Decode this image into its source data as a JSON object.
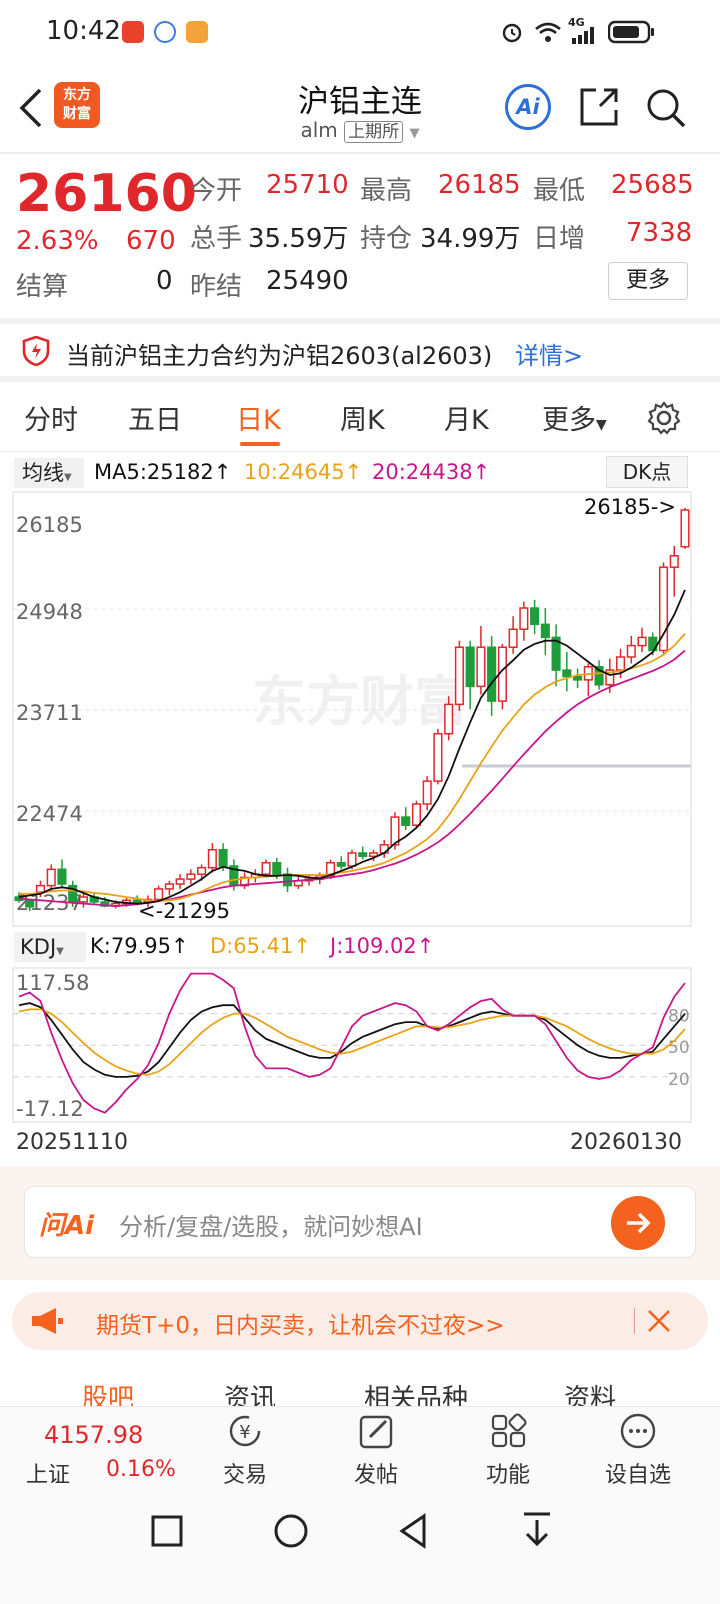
{
  "status": {
    "time": "10:42",
    "network": "4G"
  },
  "header": {
    "logo_line1": "东方",
    "logo_line2": "财富",
    "title": "沪铝主连",
    "code": "alm",
    "exchange": "上期所",
    "ai_label": "Ai"
  },
  "quote": {
    "price": "26160",
    "change_pct": "2.63%",
    "change": "670",
    "settle_label": "结算",
    "settle": "0",
    "open_label": "今开",
    "open": "25710",
    "high_label": "最高",
    "high": "26185",
    "low_label": "最低",
    "low": "25685",
    "volume_label": "总手",
    "volume": "35.59万",
    "oi_label": "持仓",
    "oi": "34.99万",
    "daily_inc_label": "日增",
    "daily_inc": "7338",
    "prev_settle_label": "昨结",
    "prev_settle": "25490",
    "more_button": "更多"
  },
  "notice": {
    "text": "当前沪铝主力合约为沪铝2603(al2603)",
    "link": "详情>"
  },
  "tabs": [
    "分时",
    "五日",
    "日K",
    "周K",
    "月K",
    "更多"
  ],
  "active_tab": "日K",
  "ma_bar": {
    "selector": "均线",
    "ma5": "MA5:25182↑",
    "ma10": "10:24645↑",
    "ma20": "20:24438↑",
    "dk_button": "DK点"
  },
  "kdj_bar": {
    "selector": "KDJ",
    "k": "K:79.95↑",
    "d": "D:65.41↑",
    "j": "J:109.02↑"
  },
  "colors": {
    "up": "#e0282c",
    "down": "#1f9d3a",
    "ma5": "#111111",
    "ma10": "#e8a317",
    "ma20": "#c8168c",
    "accent": "#f5621f",
    "link": "#2f6fd8"
  },
  "chart_data": [
    {
      "type": "candlestick",
      "y_ticks": [
        "26185",
        "24948",
        "23711",
        "22474",
        "21237"
      ],
      "ylim": [
        21237,
        26185
      ],
      "max_annotation": "26185->",
      "min_annotation": "<-21295",
      "watermark": "东方财富",
      "start_date": "20251110",
      "end_date": "20260130",
      "candles": [
        [
          21420,
          21480,
          21350,
          21380
        ],
        [
          21380,
          21400,
          21250,
          21300
        ],
        [
          21480,
          21620,
          21420,
          21560
        ],
        [
          21560,
          21820,
          21500,
          21760
        ],
        [
          21760,
          21880,
          21540,
          21580
        ],
        [
          21560,
          21620,
          21300,
          21360
        ],
        [
          21360,
          21460,
          21290,
          21420
        ],
        [
          21420,
          21480,
          21330,
          21360
        ],
        [
          21360,
          21420,
          21295,
          21310
        ],
        [
          21310,
          21380,
          21280,
          21340
        ],
        [
          21340,
          21420,
          21300,
          21380
        ],
        [
          21380,
          21440,
          21320,
          21360
        ],
        [
          21360,
          21440,
          21300,
          21390
        ],
        [
          21390,
          21560,
          21360,
          21520
        ],
        [
          21520,
          21620,
          21440,
          21580
        ],
        [
          21580,
          21700,
          21520,
          21640
        ],
        [
          21640,
          21760,
          21580,
          21700
        ],
        [
          21700,
          21820,
          21620,
          21780
        ],
        [
          21780,
          22080,
          21720,
          22000
        ],
        [
          22000,
          22080,
          21740,
          21800
        ],
        [
          21800,
          21880,
          21500,
          21560
        ],
        [
          21560,
          21720,
          21520,
          21660
        ],
        [
          21660,
          21760,
          21600,
          21700
        ],
        [
          21700,
          21880,
          21660,
          21840
        ],
        [
          21840,
          21900,
          21640,
          21700
        ],
        [
          21700,
          21780,
          21480,
          21560
        ],
        [
          21560,
          21700,
          21520,
          21620
        ],
        [
          21620,
          21700,
          21560,
          21640
        ],
        [
          21640,
          21720,
          21580,
          21680
        ],
        [
          21680,
          21880,
          21640,
          21840
        ],
        [
          21840,
          21920,
          21760,
          21800
        ],
        [
          21800,
          22000,
          21760,
          21960
        ],
        [
          21960,
          22040,
          21880,
          21920
        ],
        [
          21920,
          22000,
          21860,
          21960
        ],
        [
          21960,
          22120,
          21900,
          22060
        ],
        [
          22060,
          22460,
          22000,
          22400
        ],
        [
          22400,
          22520,
          22240,
          22300
        ],
        [
          22300,
          22600,
          22260,
          22560
        ],
        [
          22560,
          22900,
          22480,
          22840
        ],
        [
          22840,
          23480,
          22800,
          23420
        ],
        [
          23420,
          23880,
          23340,
          23780
        ],
        [
          23780,
          24560,
          23700,
          24480
        ],
        [
          24480,
          24560,
          23720,
          24000
        ],
        [
          24000,
          24740,
          23900,
          24480
        ],
        [
          24480,
          24620,
          23640,
          23820
        ],
        [
          23820,
          24520,
          23720,
          24480
        ],
        [
          24480,
          24860,
          24400,
          24700
        ],
        [
          24700,
          25040,
          24560,
          24960
        ],
        [
          24960,
          25060,
          24640,
          24760
        ],
        [
          24760,
          24960,
          24380,
          24600
        ],
        [
          24600,
          24760,
          24000,
          24200
        ],
        [
          24200,
          24420,
          23940,
          24120
        ],
        [
          24120,
          24220,
          23980,
          24080
        ],
        [
          24080,
          24280,
          23880,
          24240
        ],
        [
          24240,
          24320,
          23960,
          24020
        ],
        [
          24020,
          24340,
          23920,
          24200
        ],
        [
          24200,
          24460,
          24100,
          24360
        ],
        [
          24360,
          24620,
          24280,
          24500
        ],
        [
          24500,
          24720,
          24420,
          24600
        ],
        [
          24600,
          24660,
          24380,
          24440
        ],
        [
          24440,
          25520,
          24400,
          25460
        ],
        [
          25460,
          25720,
          25100,
          25600
        ],
        [
          25710,
          26185,
          25685,
          26160
        ]
      ],
      "ma5": [
        21420,
        21440,
        21460,
        21520,
        21540,
        21520,
        21470,
        21420,
        21390,
        21360,
        21350,
        21340,
        21350,
        21370,
        21420,
        21480,
        21560,
        21640,
        21740,
        21790,
        21760,
        21740,
        21700,
        21680,
        21680,
        21690,
        21680,
        21660,
        21650,
        21690,
        21740,
        21790,
        21850,
        21900,
        21960,
        22080,
        22160,
        22270,
        22420,
        22620,
        22900,
        23240,
        23560,
        23860,
        24040,
        24200,
        24320,
        24450,
        24520,
        24560,
        24560,
        24500,
        24400,
        24300,
        24200,
        24140,
        24160,
        24230,
        24320,
        24420,
        24640,
        24880,
        25182
      ],
      "ma10": [
        21460,
        21460,
        21470,
        21490,
        21500,
        21500,
        21490,
        21470,
        21460,
        21440,
        21420,
        21400,
        21380,
        21370,
        21380,
        21400,
        21440,
        21490,
        21550,
        21600,
        21630,
        21650,
        21660,
        21670,
        21680,
        21690,
        21690,
        21690,
        21690,
        21700,
        21720,
        21740,
        21770,
        21800,
        21840,
        21900,
        21960,
        22040,
        22130,
        22250,
        22420,
        22620,
        22840,
        23060,
        23260,
        23460,
        23620,
        23780,
        23900,
        23990,
        24060,
        24100,
        24140,
        24150,
        24160,
        24170,
        24190,
        24220,
        24260,
        24310,
        24390,
        24500,
        24645
      ],
      "ma20": [
        21400,
        21390,
        21380,
        21370,
        21360,
        21350,
        21340,
        21330,
        21320,
        21310,
        21320,
        21330,
        21350,
        21370,
        21390,
        21420,
        21450,
        21480,
        21510,
        21540,
        21560,
        21570,
        21580,
        21590,
        21600,
        21610,
        21620,
        21630,
        21640,
        21660,
        21680,
        21700,
        21720,
        21750,
        21790,
        21830,
        21880,
        21940,
        22010,
        22090,
        22190,
        22310,
        22440,
        22580,
        22720,
        22870,
        23020,
        23170,
        23310,
        23450,
        23570,
        23680,
        23780,
        23860,
        23930,
        23990,
        24040,
        24090,
        24140,
        24190,
        24250,
        24330,
        24438
      ]
    },
    {
      "type": "line",
      "y_ticks": [
        "117.58",
        "-17.12"
      ],
      "ylim": [
        -17.12,
        117.58
      ],
      "ref_lines": [
        "80",
        "50",
        "20"
      ],
      "series": [
        {
          "name": "K",
          "values": [
            88,
            90,
            86,
            74,
            60,
            46,
            34,
            27,
            22,
            20,
            20,
            21,
            25,
            34,
            48,
            62,
            74,
            82,
            86,
            88,
            88,
            76,
            64,
            56,
            52,
            48,
            44,
            40,
            38,
            38,
            44,
            52,
            58,
            62,
            66,
            70,
            72,
            72,
            68,
            66,
            68,
            72,
            76,
            80,
            82,
            80,
            78,
            78,
            78,
            74,
            66,
            58,
            50,
            44,
            40,
            38,
            38,
            40,
            42,
            44,
            56,
            68,
            79.95
          ]
        },
        {
          "name": "D",
          "values": [
            82,
            84,
            84,
            80,
            72,
            62,
            52,
            43,
            36,
            30,
            26,
            23,
            22,
            25,
            32,
            42,
            52,
            62,
            70,
            76,
            80,
            80,
            76,
            70,
            64,
            58,
            54,
            50,
            46,
            43,
            42,
            44,
            48,
            52,
            56,
            60,
            64,
            68,
            68,
            67,
            67,
            69,
            71,
            74,
            76,
            78,
            78,
            78,
            78,
            76,
            72,
            68,
            62,
            56,
            51,
            47,
            44,
            42,
            42,
            42,
            46,
            54,
            65.41
          ]
        },
        {
          "name": "J",
          "values": [
            96,
            100,
            92,
            62,
            36,
            14,
            -2,
            -10,
            -14,
            -4,
            8,
            18,
            31,
            52,
            80,
            102,
            118,
            118,
            118,
            112,
            104,
            68,
            40,
            28,
            28,
            28,
            24,
            20,
            22,
            28,
            48,
            68,
            78,
            82,
            86,
            90,
            88,
            82,
            68,
            64,
            70,
            78,
            86,
            92,
            94,
            84,
            78,
            78,
            78,
            70,
            54,
            38,
            26,
            20,
            18,
            20,
            26,
            36,
            42,
            48,
            76,
            96,
            109.02
          ]
        }
      ]
    }
  ],
  "ai_search": {
    "brand": "问Ai",
    "placeholder": "分析/复盘/选股，就问妙想AI"
  },
  "promo": {
    "text": "期货T+0，日内买卖，让机会不过夜>>"
  },
  "subtabs": [
    "股吧",
    "资讯",
    "相关品种",
    "资料"
  ],
  "bottom_nav": {
    "index_value": "4157.98",
    "index_name": "上证",
    "index_change": "0.16%",
    "items": [
      "交易",
      "发帖",
      "功能",
      "设自选"
    ]
  }
}
